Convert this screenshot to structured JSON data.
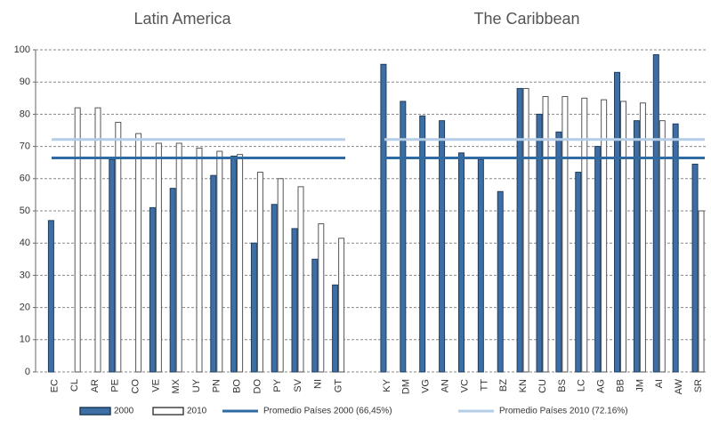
{
  "chart_data": [
    {
      "type": "bar",
      "title": "Latin America",
      "categories": [
        "EC",
        "CL",
        "AR",
        "PE",
        "CO",
        "VE",
        "MX",
        "UY",
        "PN",
        "BO",
        "DO",
        "PY",
        "SV",
        "NI",
        "GT"
      ],
      "series": [
        {
          "name": "2000",
          "color": "#3d6fa6",
          "values": [
            47,
            null,
            null,
            66,
            null,
            51,
            57,
            null,
            61,
            67,
            40,
            52,
            44.5,
            35,
            27
          ]
        },
        {
          "name": "2010",
          "color": "#ffffff",
          "values": [
            null,
            82,
            82,
            77.5,
            74,
            71,
            71,
            69.5,
            68.5,
            67.5,
            62,
            60,
            57.5,
            46,
            41.5
          ]
        }
      ],
      "reference_lines": [
        {
          "name": "Promedio Países 2000 (66,45%)",
          "value": 66.45,
          "color": "#2f6aa3"
        },
        {
          "name": "Promedio Países 2010 (72.16%)",
          "value": 72.16,
          "color": "#b5cde6"
        }
      ],
      "ylim": [
        0,
        100
      ],
      "yticks": [
        0,
        10,
        20,
        30,
        40,
        50,
        60,
        70,
        80,
        90,
        100
      ],
      "grid": true
    },
    {
      "type": "bar",
      "title": "The Caribbean",
      "categories": [
        "KY",
        "DM",
        "VG",
        "AN",
        "VC",
        "TT",
        "BZ",
        "KN",
        "CU",
        "BS",
        "LC",
        "AG",
        "BB",
        "JM",
        "AI",
        "AW",
        "SR"
      ],
      "series": [
        {
          "color": "#3d6fa6",
          "values": [
            95.5,
            84,
            79.5,
            78,
            68,
            66,
            56,
            88,
            80,
            74.5,
            62,
            70,
            93,
            78,
            98.5,
            77,
            64.5
          ]
        },
        {
          "color": "#ffffff",
          "values": [
            null,
            null,
            null,
            null,
            null,
            null,
            null,
            88,
            85.5,
            85.5,
            85,
            84.5,
            84,
            83.5,
            78,
            null,
            50
          ]
        }
      ],
      "reference_lines": [
        {
          "value": 66.45,
          "color": "#2f6aa3"
        },
        {
          "value": 72.16,
          "color": "#b5cde6"
        }
      ],
      "ylim": [
        0,
        100
      ],
      "grid": true
    }
  ]
}
